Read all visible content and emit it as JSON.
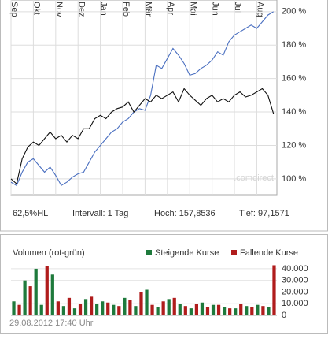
{
  "chart_data": [
    {
      "type": "line",
      "xlim": [
        0,
        11.9
      ],
      "ylim": [
        90.5,
        207
      ],
      "xticks": [
        {
          "value": 0,
          "label": "Sep"
        },
        {
          "value": 1,
          "label": "Okt"
        },
        {
          "value": 2,
          "label": "Nov"
        },
        {
          "value": 3,
          "label": "Dez"
        },
        {
          "value": 4,
          "label": "Jan"
        },
        {
          "value": 5,
          "label": "Feb"
        },
        {
          "value": 6,
          "label": "Mär"
        },
        {
          "value": 7,
          "label": "Apr"
        },
        {
          "value": 8,
          "label": "Mai"
        },
        {
          "value": 9,
          "label": "Jun"
        },
        {
          "value": 10,
          "label": "Jul"
        },
        {
          "value": 11,
          "label": "Aug"
        }
      ],
      "yticks": [
        {
          "value": 100,
          "label": "100 %"
        },
        {
          "value": 120,
          "label": "120 %"
        },
        {
          "value": 140,
          "label": "140 %"
        },
        {
          "value": 160,
          "label": "160 %"
        },
        {
          "value": 180,
          "label": "180 %"
        },
        {
          "value": 200,
          "label": "200 %"
        }
      ],
      "grid": true,
      "watermark": ".comdirect",
      "x": [
        0,
        0.25,
        0.5,
        0.75,
        1,
        1.25,
        1.5,
        1.75,
        2,
        2.25,
        2.5,
        2.75,
        3,
        3.25,
        3.5,
        3.75,
        4,
        4.25,
        4.5,
        4.75,
        5,
        5.25,
        5.5,
        5.75,
        6,
        6.25,
        6.5,
        6.75,
        7,
        7.25,
        7.5,
        7.75,
        8,
        8.25,
        8.5,
        8.75,
        9,
        9.25,
        9.5,
        9.75,
        10,
        10.25,
        10.5,
        10.75,
        11,
        11.25,
        11.5,
        11.75
      ],
      "series": [
        {
          "color": "#4a6fc0",
          "values": [
            98,
            96,
            104,
            110,
            112,
            108,
            104,
            107,
            102,
            96,
            98,
            101,
            103,
            104,
            110,
            116,
            120,
            124,
            128,
            130,
            134,
            136,
            140,
            142,
            141,
            150,
            168,
            166,
            172,
            178,
            174,
            169,
            162,
            163,
            166,
            168,
            171,
            176,
            174,
            182,
            186,
            188,
            190,
            192,
            190,
            194,
            198,
            200
          ]
        },
        {
          "color": "#111111",
          "values": [
            100,
            97,
            112,
            119,
            122,
            120,
            124,
            128,
            124,
            126,
            122,
            126,
            124,
            130,
            130,
            136,
            138,
            136,
            140,
            142,
            143,
            146,
            140,
            144,
            148,
            146,
            150,
            148,
            150,
            152,
            146,
            154,
            150,
            147,
            144,
            148,
            150,
            146,
            148,
            146,
            150,
            152,
            149,
            150,
            152,
            154,
            150,
            139
          ]
        }
      ],
      "stats": [
        "62,5%HL",
        "Intervall: 1 Tag",
        "Hoch: 157,8536",
        "Tief: 97,1571"
      ]
    },
    {
      "type": "bar",
      "title": "Volumen (rot-grün)",
      "ylim": [
        0,
        44000
      ],
      "yticks": [
        0,
        {
          "value": 10000,
          "label": "10.000"
        },
        {
          "value": 20000,
          "label": "20.000"
        },
        {
          "value": 30000,
          "label": "30.000"
        },
        {
          "value": 40000,
          "label": "40.000"
        }
      ],
      "series": [
        {
          "name": "Steigende Kurse",
          "color": "#1e7a3c",
          "values": [
            12000,
            null,
            30000,
            null,
            40000,
            9000,
            null,
            35000,
            null,
            8000,
            null,
            6000,
            null,
            14000,
            null,
            10000,
            12000,
            null,
            9000,
            null,
            15000,
            null,
            8000,
            null,
            22000,
            null,
            7000,
            null,
            14000,
            null,
            10000,
            null,
            6000,
            null,
            11000,
            null,
            9000,
            null,
            7000,
            null,
            6000,
            null,
            8000,
            null,
            9000,
            null,
            7000,
            null
          ]
        },
        {
          "name": "Fallende Kurse",
          "color": "#b01c1c",
          "values": [
            null,
            9000,
            null,
            25000,
            null,
            null,
            42000,
            null,
            12000,
            null,
            15000,
            null,
            10000,
            null,
            16000,
            null,
            null,
            11000,
            null,
            8000,
            null,
            13000,
            null,
            20000,
            null,
            9000,
            null,
            12000,
            null,
            15000,
            null,
            8000,
            null,
            10000,
            null,
            7000,
            null,
            9000,
            null,
            6000,
            null,
            10000,
            null,
            7000,
            null,
            8000,
            null,
            43000
          ]
        }
      ],
      "footer": "29.08.2012 17:40 Uhr"
    }
  ]
}
